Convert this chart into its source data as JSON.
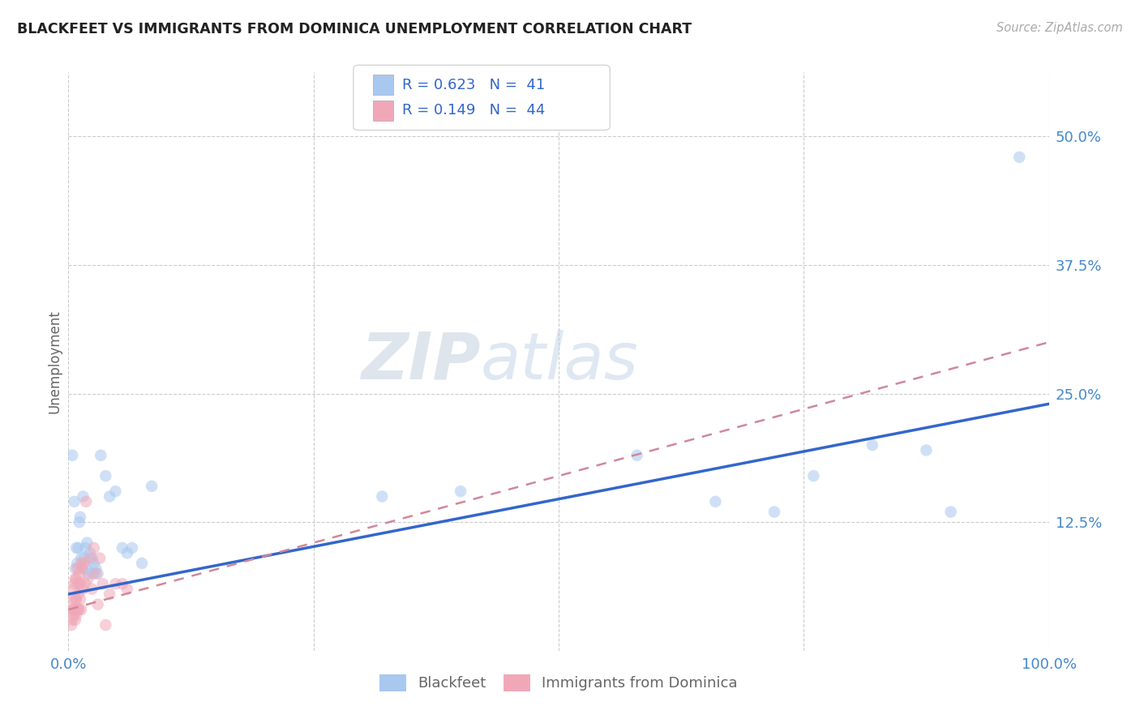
{
  "title": "BLACKFEET VS IMMIGRANTS FROM DOMINICA UNEMPLOYMENT CORRELATION CHART",
  "source": "Source: ZipAtlas.com",
  "ylabel": "Unemployment",
  "xlim": [
    0,
    1.0
  ],
  "ylim": [
    0,
    0.5625
  ],
  "ytick_positions": [
    0.125,
    0.25,
    0.375,
    0.5
  ],
  "ytick_labels": [
    "12.5%",
    "25.0%",
    "37.5%",
    "50.0%"
  ],
  "blackfeet_color": "#a8c8f0",
  "dominica_color": "#f0a8b8",
  "blue_line_color": "#3366cc",
  "pink_line_color": "#d08898",
  "legend_label1": "Blackfeet",
  "legend_label2": "Immigrants from Dominica",
  "blackfeet_x": [
    0.004,
    0.006,
    0.007,
    0.008,
    0.009,
    0.01,
    0.011,
    0.012,
    0.013,
    0.014,
    0.015,
    0.016,
    0.017,
    0.018,
    0.019,
    0.02,
    0.022,
    0.024,
    0.025,
    0.026,
    0.028,
    0.03,
    0.033,
    0.038,
    0.042,
    0.048,
    0.055,
    0.06,
    0.065,
    0.075,
    0.085,
    0.32,
    0.4,
    0.58,
    0.66,
    0.72,
    0.76,
    0.82,
    0.875,
    0.9,
    0.97
  ],
  "blackfeet_y": [
    0.19,
    0.145,
    0.08,
    0.1,
    0.085,
    0.1,
    0.125,
    0.13,
    0.09,
    0.08,
    0.15,
    0.09,
    0.1,
    0.08,
    0.105,
    0.075,
    0.095,
    0.09,
    0.075,
    0.085,
    0.08,
    0.075,
    0.19,
    0.17,
    0.15,
    0.155,
    0.1,
    0.095,
    0.1,
    0.085,
    0.16,
    0.15,
    0.155,
    0.19,
    0.145,
    0.135,
    0.17,
    0.2,
    0.195,
    0.135,
    0.48
  ],
  "dominica_x": [
    0.003,
    0.003,
    0.004,
    0.004,
    0.005,
    0.005,
    0.005,
    0.006,
    0.006,
    0.007,
    0.007,
    0.007,
    0.008,
    0.008,
    0.008,
    0.009,
    0.009,
    0.01,
    0.01,
    0.01,
    0.011,
    0.011,
    0.012,
    0.012,
    0.013,
    0.013,
    0.014,
    0.015,
    0.016,
    0.017,
    0.018,
    0.02,
    0.022,
    0.024,
    0.026,
    0.028,
    0.03,
    0.032,
    0.035,
    0.038,
    0.042,
    0.048,
    0.055,
    0.06
  ],
  "dominica_y": [
    0.04,
    0.025,
    0.03,
    0.05,
    0.035,
    0.06,
    0.04,
    0.04,
    0.065,
    0.03,
    0.07,
    0.05,
    0.035,
    0.07,
    0.05,
    0.04,
    0.08,
    0.055,
    0.065,
    0.04,
    0.075,
    0.04,
    0.05,
    0.065,
    0.04,
    0.085,
    0.08,
    0.06,
    0.085,
    0.065,
    0.145,
    0.07,
    0.09,
    0.06,
    0.1,
    0.075,
    0.045,
    0.09,
    0.065,
    0.025,
    0.055,
    0.065,
    0.065,
    0.06
  ],
  "blue_line_x": [
    0.0,
    1.0
  ],
  "blue_line_y": [
    0.055,
    0.24
  ],
  "pink_line_x": [
    0.0,
    1.0
  ],
  "pink_line_y": [
    0.04,
    0.3
  ],
  "title_color": "#222222",
  "axis_label_color": "#666666",
  "tick_color": "#4488cc",
  "grid_color": "#cccccc",
  "background_color": "#ffffff",
  "marker_size": 110,
  "marker_alpha": 0.55,
  "legend_color": "#3366cc"
}
